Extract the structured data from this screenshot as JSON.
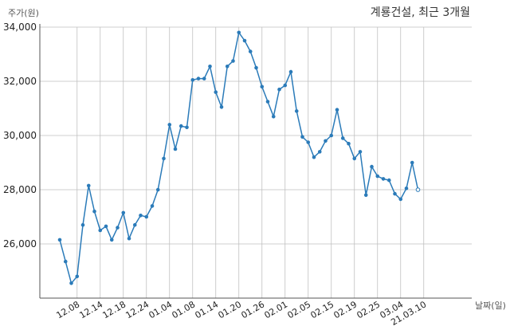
{
  "chart_data": {
    "type": "line",
    "title": "계룡건설, 최근 3개월",
    "xlabel": "날짜(일)",
    "ylabel": "주가(원)",
    "ylim": [
      24000,
      34000
    ],
    "yticks": [
      26000,
      28000,
      30000,
      32000,
      34000
    ],
    "ytick_labels": [
      "26,000",
      "28,000",
      "30,000",
      "32,000",
      "34,000"
    ],
    "xtick_labels": [
      "12.08",
      "12.14",
      "12.18",
      "12.24",
      "01.04",
      "01.08",
      "01.14",
      "01.20",
      "01.26",
      "02.01",
      "02.05",
      "02.15",
      "02.19",
      "02.25",
      "03.04",
      "21.03.10"
    ],
    "xtick_index": [
      3,
      7,
      11,
      15,
      19,
      23,
      27,
      31,
      35,
      39,
      43,
      47,
      51,
      55,
      59,
      63
    ],
    "grid": true,
    "series": [
      {
        "values": [
          26150,
          25350,
          24550,
          24800,
          26700,
          28150,
          27200,
          26500,
          26650,
          26150,
          26600,
          27150,
          26200,
          26700,
          27050,
          27000,
          27400,
          28000,
          29150,
          30400,
          29500,
          30350,
          30300,
          32050,
          32100,
          32100,
          32550,
          31600,
          31050,
          32550,
          32750,
          33800,
          33500,
          33100,
          32500,
          31800,
          31250,
          30700,
          31700,
          31850,
          32350,
          30900,
          29950,
          29750,
          29200,
          29400,
          29800,
          30000,
          30950,
          29900,
          29700,
          29150,
          29400,
          27800,
          28850,
          28500,
          28400,
          28350,
          27850,
          27650,
          28050,
          29000,
          28000
        ]
      }
    ]
  }
}
